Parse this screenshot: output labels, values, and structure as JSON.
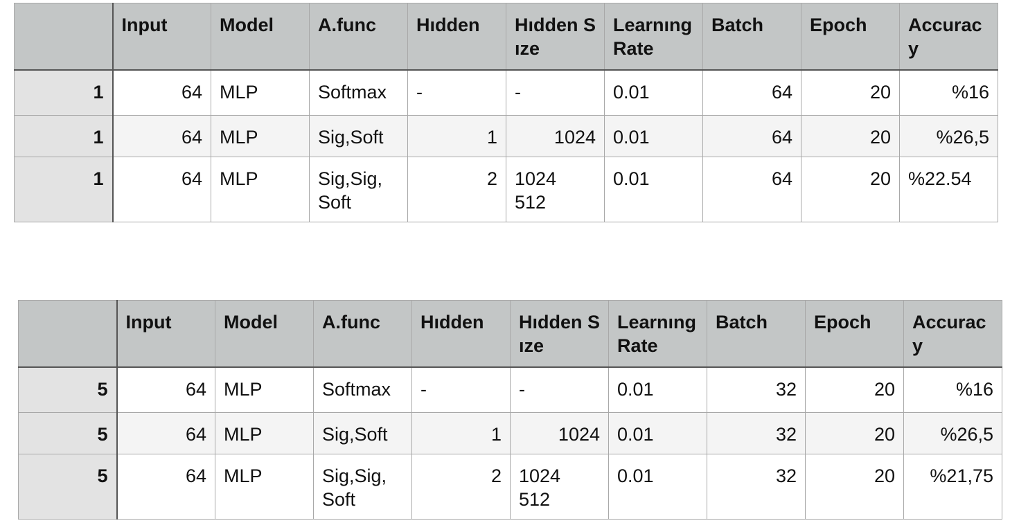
{
  "tables": [
    {
      "headers": [
        "",
        "Input",
        "Model",
        "A.func",
        "Hıdden",
        "Hıdden Sıze",
        "Learnıng Rate",
        "Batch",
        "Epoch",
        "Accuracy"
      ],
      "rows": [
        [
          "1",
          "64",
          "MLP",
          "Softmax",
          "-",
          "-",
          "0.01",
          "64",
          "20",
          "%16"
        ],
        [
          "1",
          "64",
          "MLP",
          "Sig,Soft",
          "1",
          "1024",
          "0.01",
          "64",
          "20",
          "%26,5"
        ],
        [
          "1",
          "64",
          "MLP",
          "Sig,Sig,\nSoft",
          "2",
          "1024\n512",
          "0.01",
          "64",
          "20",
          "%22.54"
        ]
      ]
    },
    {
      "headers": [
        "",
        "Input",
        "Model",
        "A.func",
        "Hıdden",
        "Hıdden Sıze",
        "Learnıng Rate",
        "Batch",
        "Epoch",
        "Accuracy"
      ],
      "rows": [
        [
          "5",
          "64",
          "MLP",
          "Softmax",
          "-",
          "-",
          "0.01",
          "32",
          "20",
          "%16"
        ],
        [
          "5",
          "64",
          "MLP",
          "Sig,Soft",
          "1",
          "1024",
          "0.01",
          "32",
          "20",
          "%26,5"
        ],
        [
          "5",
          "64",
          "MLP",
          "Sig,Sig,\nSoft",
          "2",
          "1024\n512",
          "0.01",
          "32",
          "20",
          "%21,75"
        ]
      ]
    }
  ]
}
